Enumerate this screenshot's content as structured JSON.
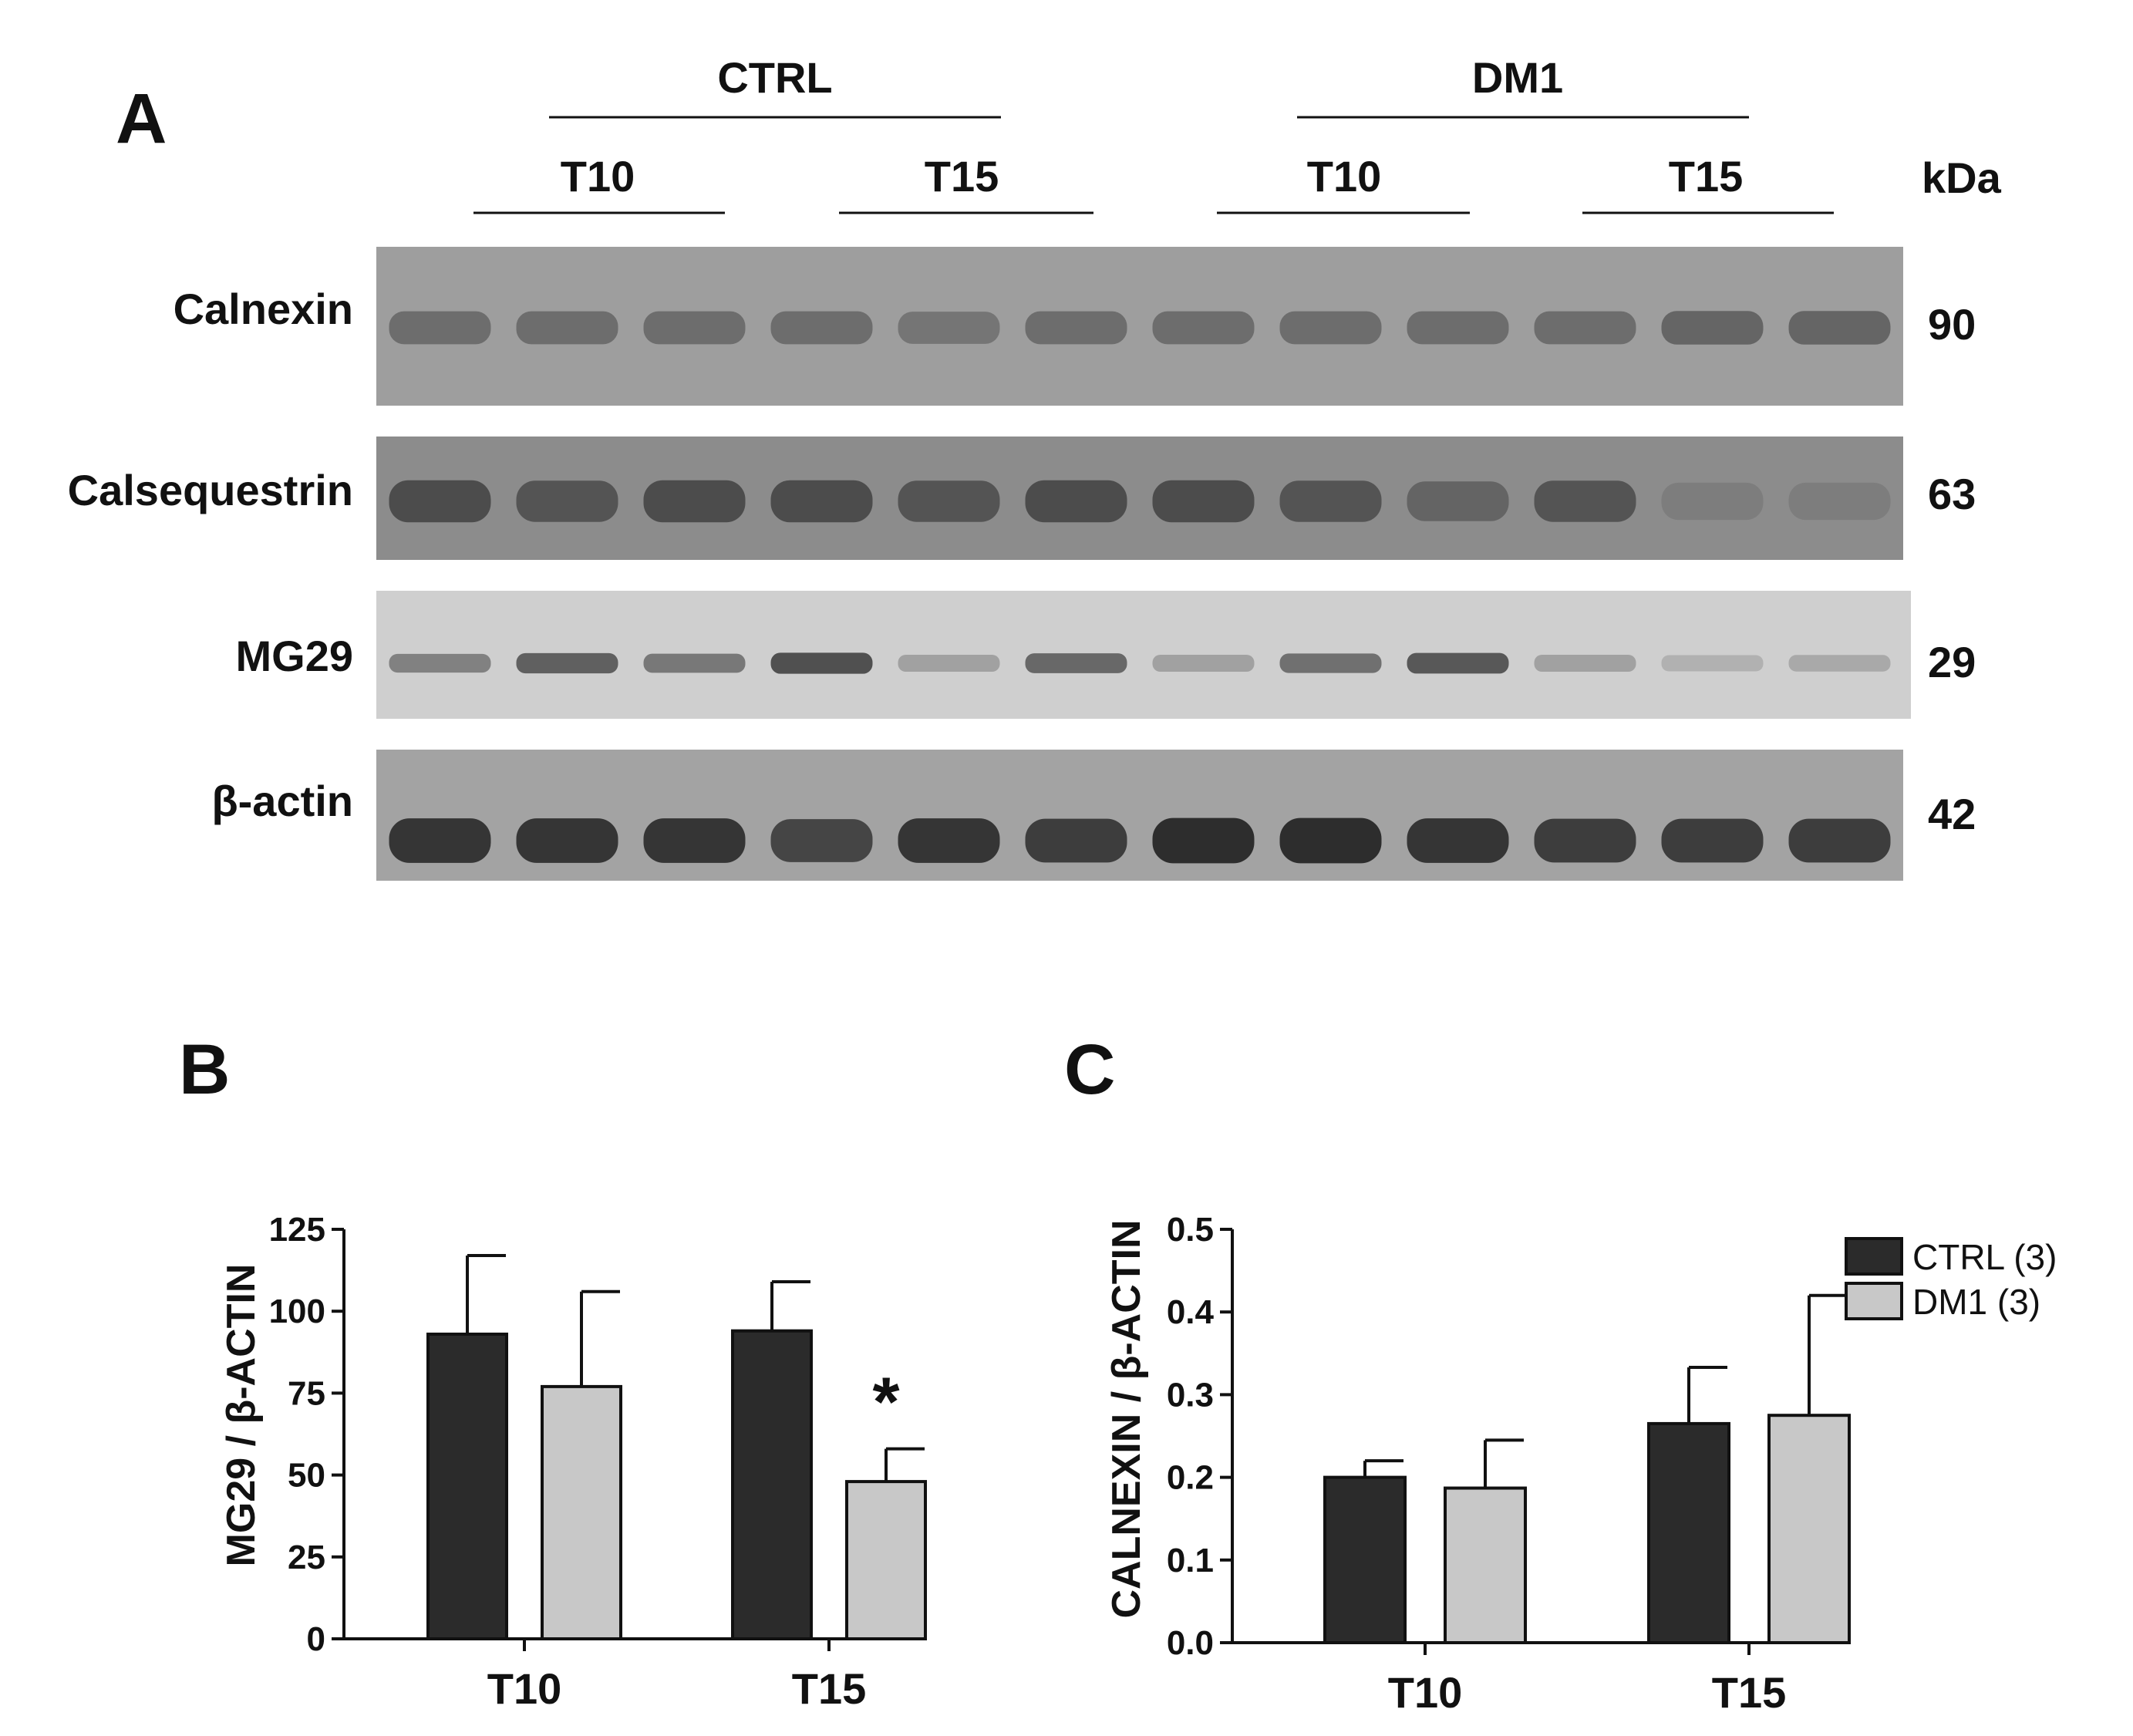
{
  "panel_a": {
    "letter": "A",
    "groups": [
      "CTRL",
      "DM1"
    ],
    "timepoints": [
      "T10",
      "T15",
      "T10",
      "T15"
    ],
    "kda_label": "kDa",
    "lanes": 12,
    "blots": [
      {
        "name": "Calnexin",
        "kda": "90",
        "intensity": [
          0.55,
          0.55,
          0.55,
          0.55,
          0.5,
          0.55,
          0.55,
          0.55,
          0.55,
          0.55,
          0.6,
          0.6
        ]
      },
      {
        "name": "Calsequestrin",
        "kda": "63",
        "intensity": [
          0.75,
          0.7,
          0.75,
          0.75,
          0.7,
          0.75,
          0.75,
          0.7,
          0.6,
          0.7,
          0.45,
          0.45
        ]
      },
      {
        "name": "MG29",
        "kda": "29",
        "intensity": [
          0.45,
          0.65,
          0.5,
          0.75,
          0.25,
          0.6,
          0.25,
          0.55,
          0.7,
          0.25,
          0.15,
          0.2
        ]
      },
      {
        "name": "β-actin",
        "kda": "42",
        "intensity": [
          0.9,
          0.9,
          0.9,
          0.8,
          0.9,
          0.85,
          0.95,
          0.95,
          0.9,
          0.85,
          0.85,
          0.85
        ]
      }
    ]
  },
  "panel_b": {
    "letter": "B",
    "ylabel": "MG29 / β-ACTIN",
    "significance": "*"
  },
  "panel_c": {
    "letter": "C",
    "ylabel": "CALNEXIN / β-ACTIN",
    "legend": [
      "CTRL (3)",
      "DM1 (3)"
    ]
  },
  "colors": {
    "ctrl": "#2b2b2b",
    "dm1": "#c8c8c8",
    "axis": "#111111"
  },
  "chart_data": [
    {
      "type": "bar",
      "panel": "B",
      "categories": [
        "T10",
        "T15"
      ],
      "series": [
        {
          "name": "CTRL (3)",
          "values": [
            93,
            94
          ],
          "errors": [
            24,
            15
          ]
        },
        {
          "name": "DM1 (3)",
          "values": [
            77,
            48
          ],
          "errors": [
            29,
            10
          ]
        }
      ],
      "ylabel": "MG29 / β-ACTIN",
      "ylim": [
        0,
        125
      ],
      "yticks": [
        "0",
        "25",
        "50",
        "75",
        "100",
        "125"
      ],
      "annotations": [
        {
          "category": "T15",
          "series": "DM1 (3)",
          "text": "*"
        }
      ]
    },
    {
      "type": "bar",
      "panel": "C",
      "categories": [
        "T10",
        "T15"
      ],
      "series": [
        {
          "name": "CTRL (3)",
          "values": [
            0.2,
            0.265
          ],
          "errors": [
            0.02,
            0.068
          ]
        },
        {
          "name": "DM1 (3)",
          "values": [
            0.187,
            0.275
          ],
          "errors": [
            0.058,
            0.145
          ]
        }
      ],
      "ylabel": "CALNEXIN / β-ACTIN",
      "ylim": [
        0,
        0.5
      ],
      "yticks": [
        "0.0",
        "0.1",
        "0.2",
        "0.3",
        "0.4",
        "0.5"
      ],
      "legend": "top-right"
    }
  ]
}
